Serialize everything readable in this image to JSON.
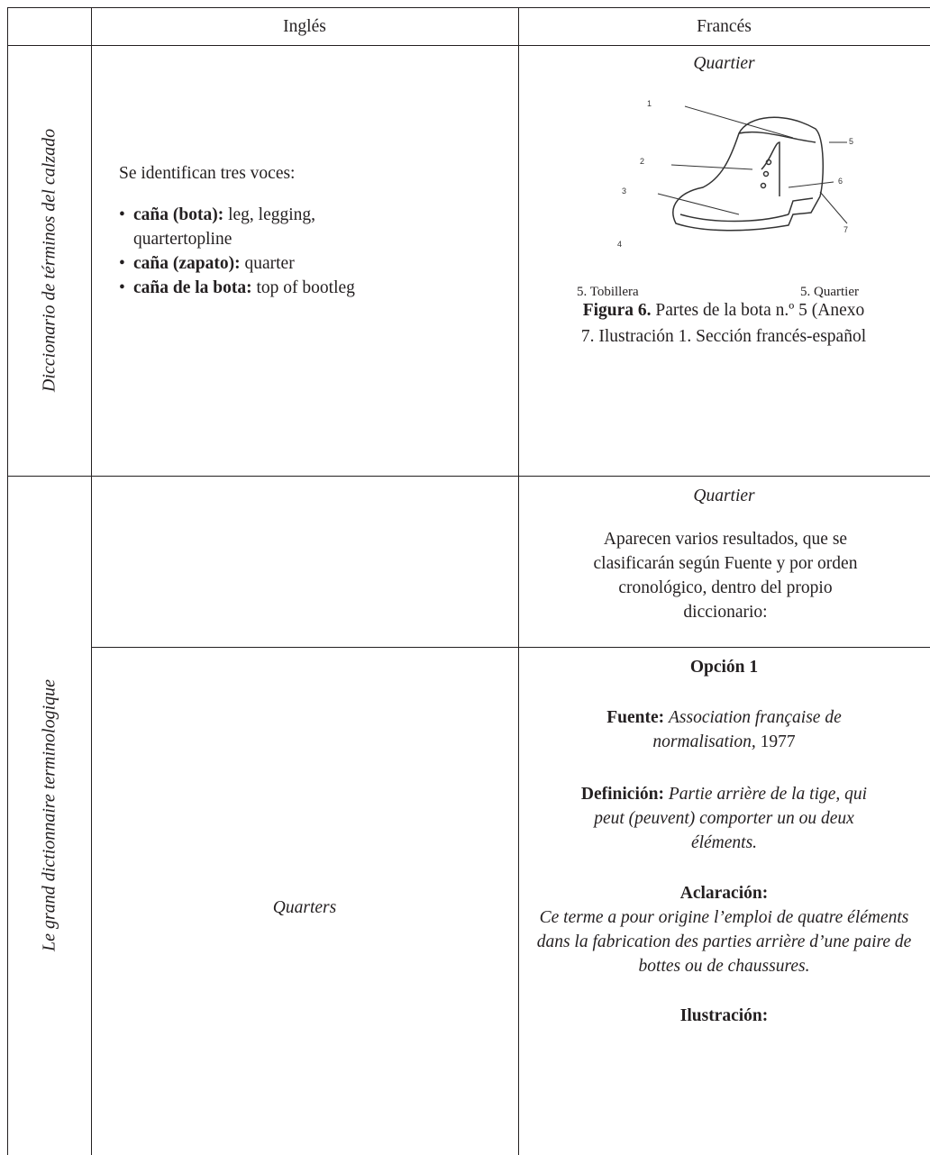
{
  "table": {
    "header": {
      "english": "Inglés",
      "french": "Francés"
    },
    "rows": [
      {
        "source": "Diccionario de términos del calzado",
        "english": {
          "intro": "Se identifican tres voces:",
          "items": [
            {
              "term": "caña (bota):",
              "text": "leg, legging, quartertopline"
            },
            {
              "term": "caña (zapato):",
              "text": "quarter"
            },
            {
              "term": "caña de la bota:",
              "text": "top of bootleg"
            }
          ]
        },
        "french": {
          "term": "Quartier",
          "figure": {
            "labels": [
              "1",
              "2",
              "3",
              "4",
              "5",
              "6",
              "7"
            ],
            "legend": [
              "5. Tobillera",
              "5. Quartier"
            ],
            "caption_label": "Figura 6.",
            "caption_text": "Partes de la bota n.º 5 (Anexo 7. Ilustración 1. Sección francés-español"
          }
        }
      },
      {
        "source": "Le grand dictionnaire terminologique",
        "subrows": [
          {
            "french": {
              "term": "Quartier",
              "note": "Aparecen varios resultados, que se clasificarán según Fuente y por orden cronológico, dentro del propio diccionario:"
            }
          },
          {
            "english": "Quarters",
            "french": {
              "option": "Opción 1",
              "source_label": "Fuente:",
              "source_text": "Association française de normalisation,",
              "source_year": "1977",
              "definition_label": "Definición:",
              "definition_text": "Partie arrière de la tige, qui peut (peuvent) comporter un ou deux éléments.",
              "clarification_label": "Aclaración:",
              "clarification_text": "Ce terme a pour origine l’emploi de quatre éléments dans la fabrication des parties arrière d’une paire de bottes ou de chaussures.",
              "illustration_label": "Ilustración:"
            }
          }
        ]
      }
    ]
  }
}
